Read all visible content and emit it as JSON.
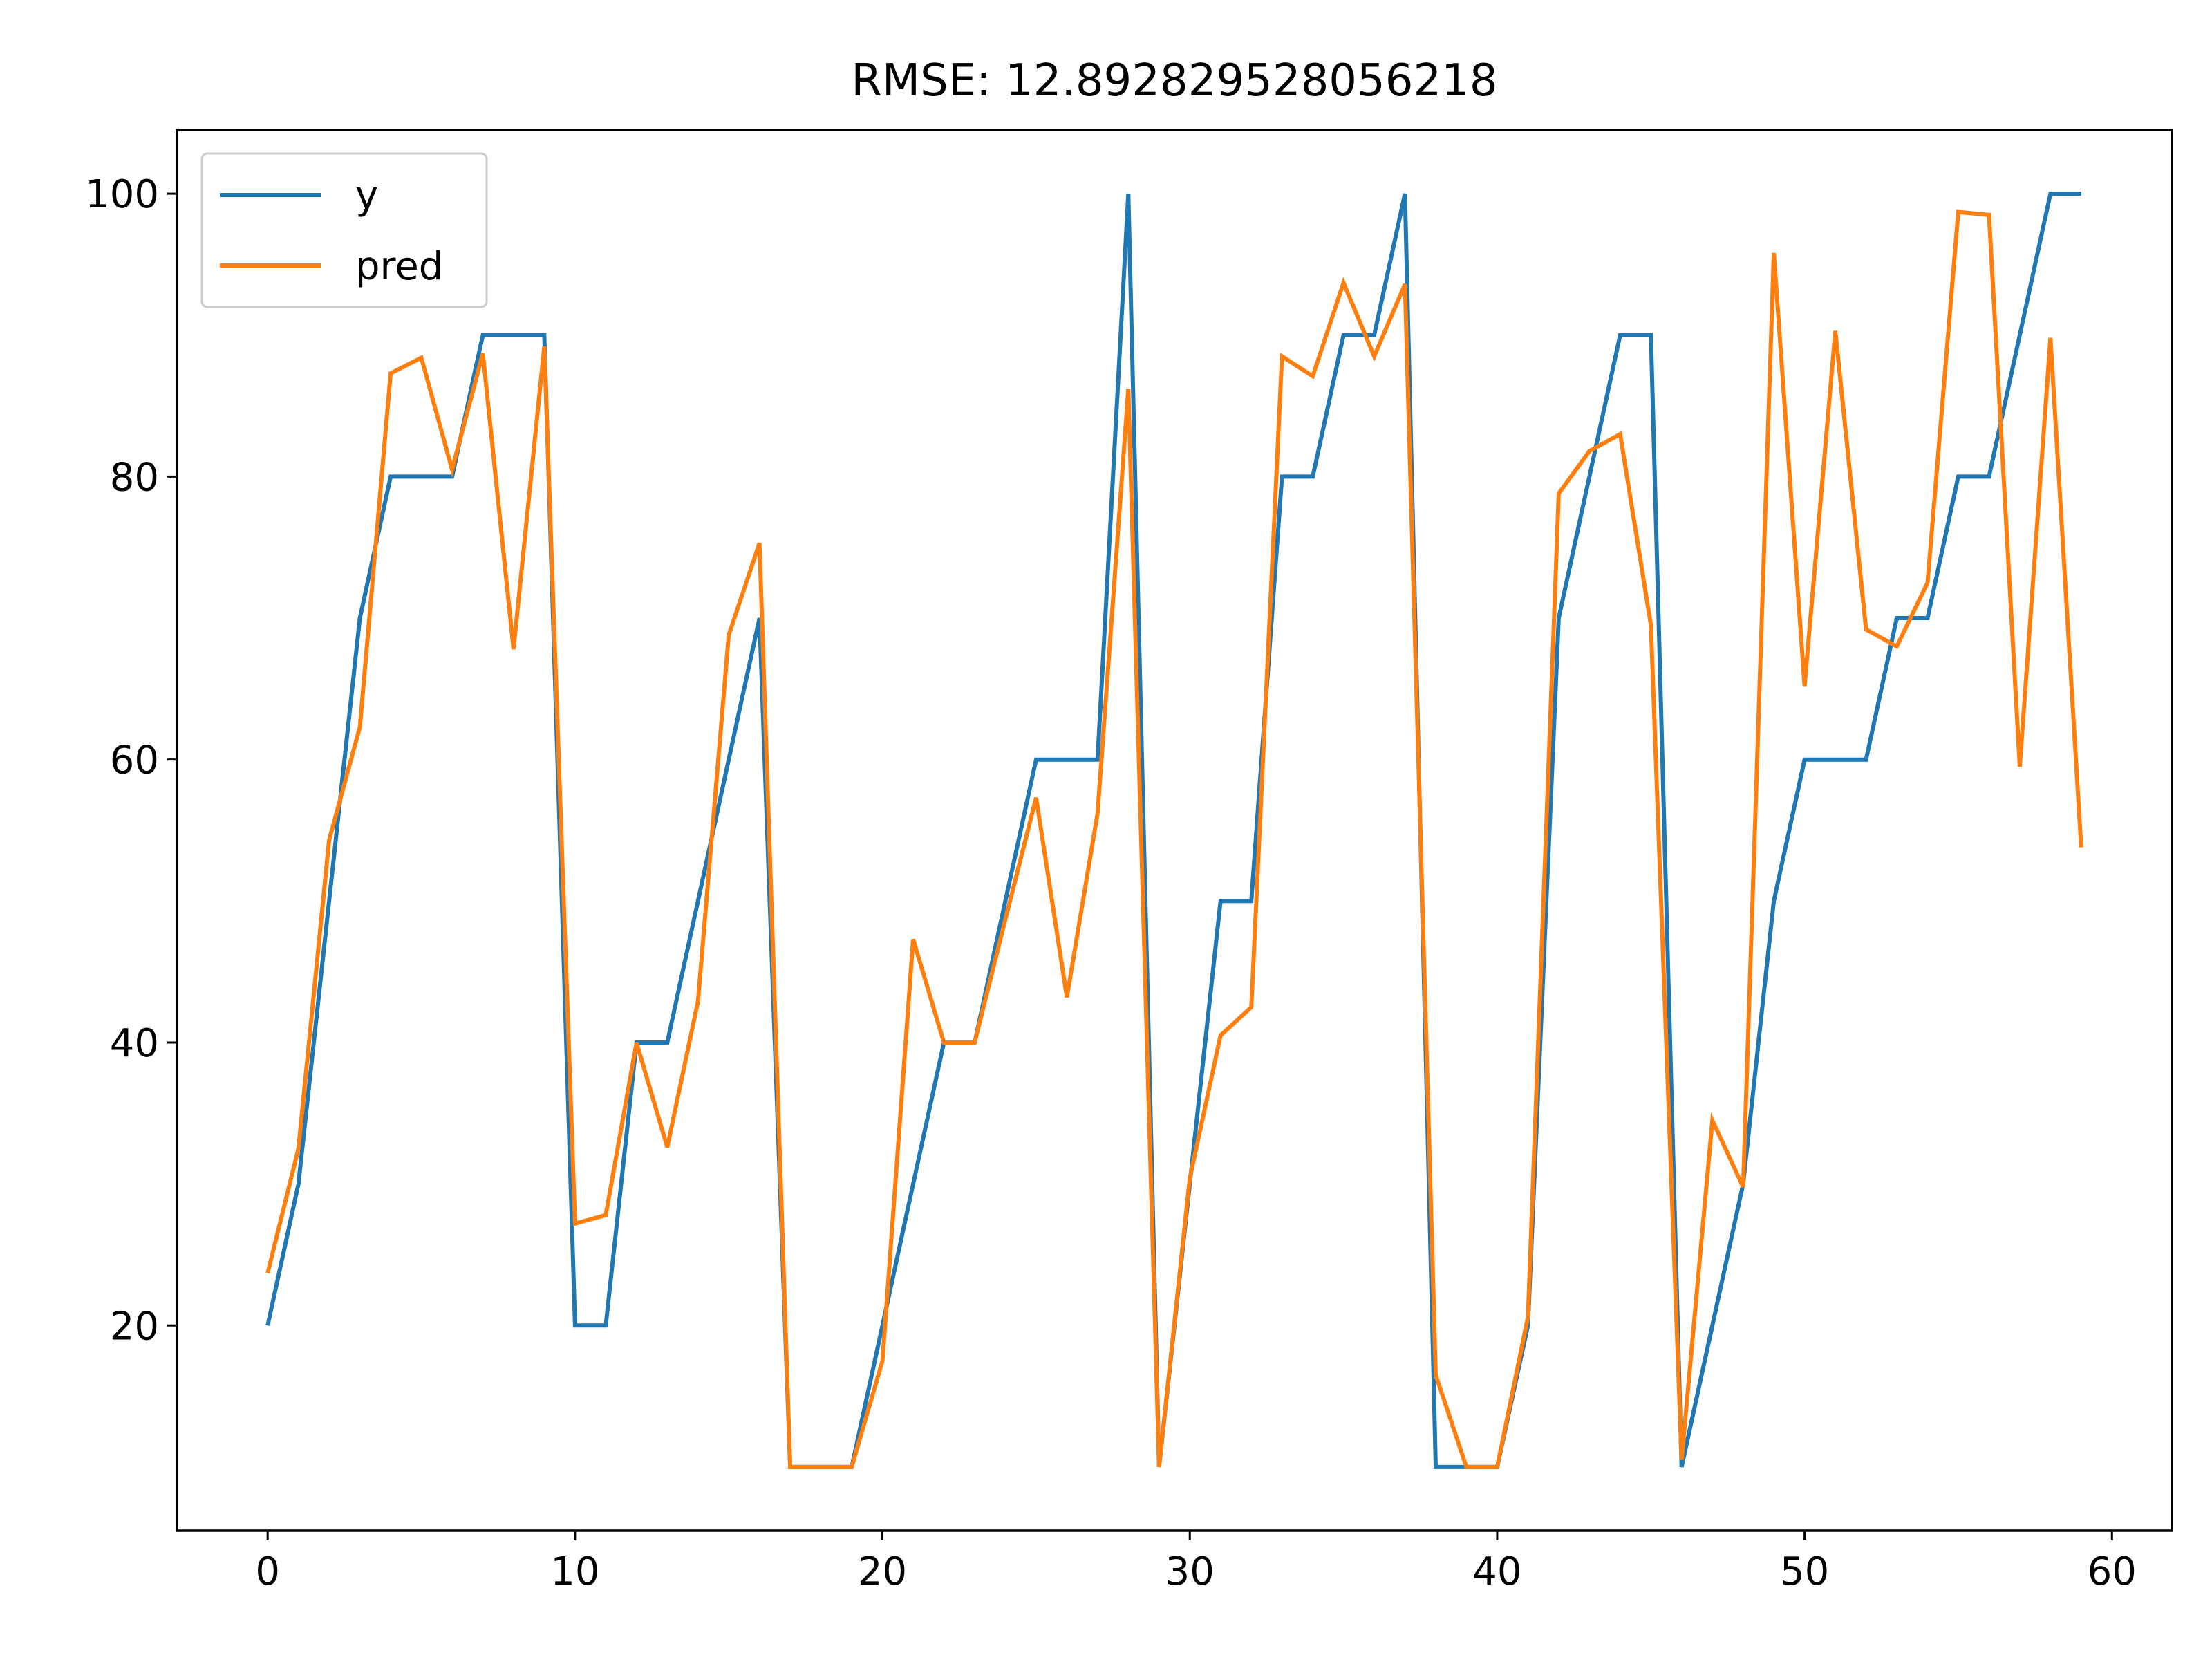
{
  "chart_data": {
    "type": "line",
    "title": "RMSE: 12.892829528056218",
    "xlabel": "",
    "ylabel": "",
    "xlim": [
      -2.95,
      61.95
    ],
    "ylim": [
      5.5,
      104.5
    ],
    "x_ticks": [
      0,
      10,
      20,
      30,
      40,
      50,
      60
    ],
    "y_ticks": [
      20,
      40,
      60,
      80,
      100
    ],
    "grid": false,
    "legend": {
      "position": "top-left",
      "entries": [
        "y",
        "pred"
      ]
    },
    "x": [
      0,
      1,
      2,
      3,
      4,
      5,
      6,
      7,
      8,
      9,
      10,
      11,
      12,
      13,
      14,
      15,
      16,
      17,
      18,
      19,
      20,
      21,
      22,
      23,
      24,
      25,
      26,
      27,
      28,
      29,
      30,
      31,
      32,
      33,
      34,
      35,
      36,
      37,
      38,
      39,
      40,
      41,
      42,
      43,
      44,
      45,
      46,
      47,
      48,
      49,
      50,
      51,
      52,
      53,
      54,
      55,
      56,
      57,
      58,
      59
    ],
    "series": [
      {
        "name": "y",
        "color": "#1f77b4",
        "values": [
          20,
          30,
          50,
          70,
          80,
          80,
          80,
          90,
          90,
          90,
          20,
          20,
          40,
          40,
          50,
          60,
          70,
          10,
          10,
          10,
          20,
          30,
          40,
          40,
          50,
          60,
          60,
          60,
          100,
          10,
          30,
          50,
          50,
          80,
          80,
          90,
          90,
          100,
          10,
          10,
          10,
          20,
          70,
          80,
          90,
          90,
          10,
          20,
          30,
          50,
          60,
          60,
          60,
          70,
          70,
          80,
          80,
          90,
          100,
          100
        ]
      },
      {
        "name": "pred",
        "color": "#ff7f0e",
        "values": [
          23.7,
          32.5,
          54.3,
          62.3,
          87.3,
          88.4,
          80.5,
          88.7,
          67.8,
          89.2,
          27.2,
          27.8,
          40.0,
          32.6,
          42.9,
          68.8,
          75.3,
          10.0,
          10.0,
          10.0,
          17.5,
          47.3,
          40.0,
          40.0,
          48.7,
          57.3,
          43.2,
          56.2,
          86.2,
          10.0,
          30.4,
          40.5,
          42.5,
          88.5,
          87.1,
          93.7,
          88.5,
          93.6,
          16.5,
          10.0,
          10.0,
          20.6,
          78.8,
          81.8,
          83.0,
          69.5,
          10.5,
          34.5,
          29.8,
          95.8,
          65.2,
          90.3,
          69.2,
          68.0,
          72.5,
          98.7,
          98.5,
          59.5,
          89.8,
          53.8
        ]
      }
    ]
  }
}
